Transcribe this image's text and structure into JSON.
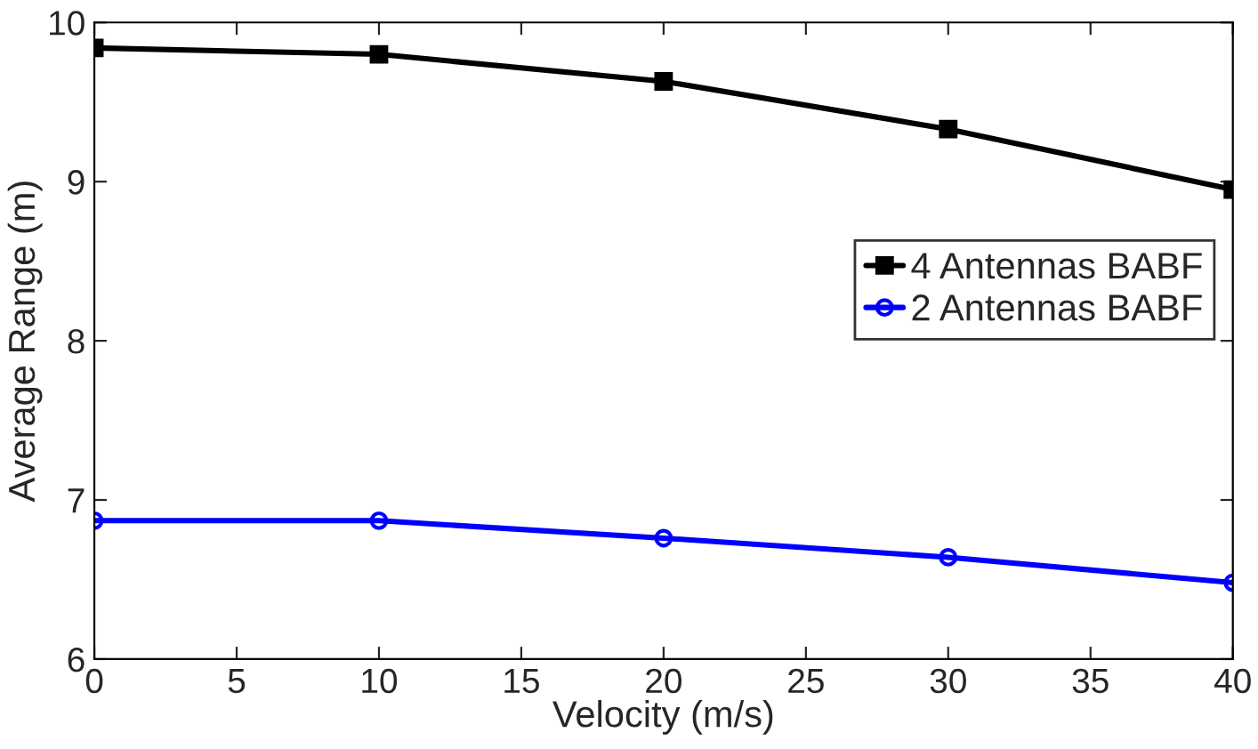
{
  "chart_data": {
    "type": "line",
    "xlabel": "Velocity (m/s)",
    "ylabel": "Average Range (m)",
    "x": [
      0,
      10,
      20,
      30,
      40
    ],
    "series": [
      {
        "name": "4 Antennas BABF",
        "color": "#000000",
        "marker": "square",
        "values": [
          9.84,
          9.8,
          9.63,
          9.33,
          8.95
        ]
      },
      {
        "name": "2 Antennas BABF",
        "color": "#0000ff",
        "marker": "circle",
        "values": [
          6.87,
          6.87,
          6.76,
          6.64,
          6.48
        ]
      }
    ],
    "xlim": [
      0,
      40
    ],
    "xticks": [
      0,
      5,
      10,
      15,
      20,
      25,
      30,
      35,
      40
    ],
    "ylim": [
      6,
      10
    ],
    "yticks": [
      6,
      7,
      8,
      9,
      10
    ],
    "grid": false,
    "legend": "right",
    "line_style": "solid"
  }
}
